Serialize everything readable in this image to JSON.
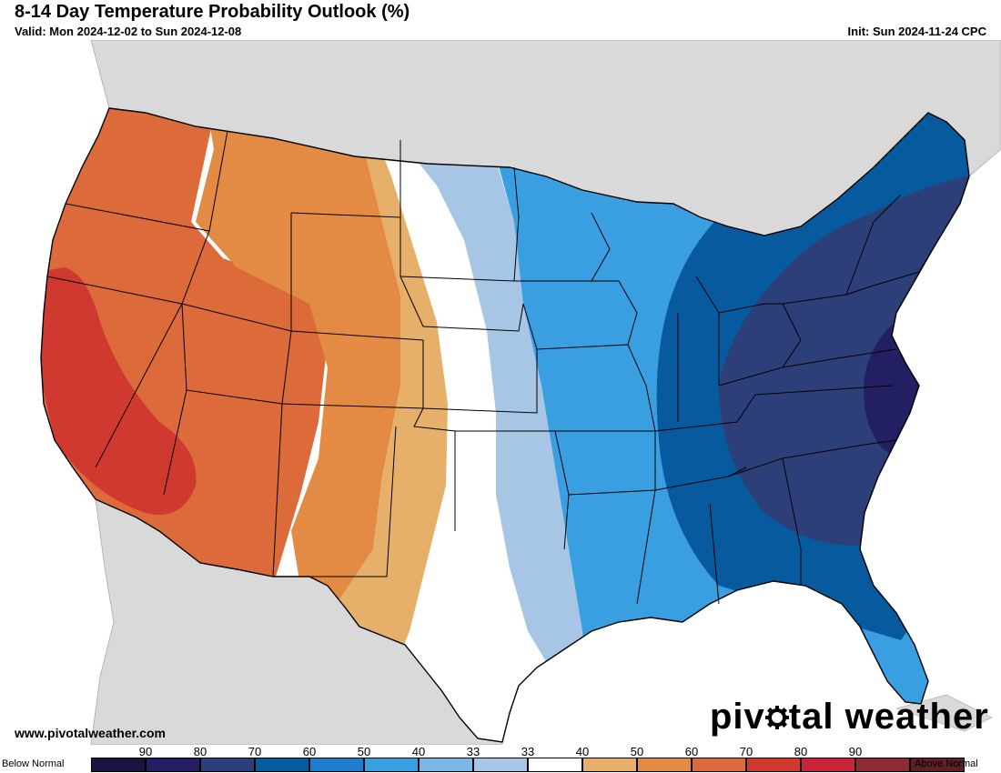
{
  "header": {
    "title": "8-14 Day Temperature Probability Outlook (%)",
    "valid": "Valid: Mon 2024-12-02 to Sun 2024-12-08",
    "init": "Init: Sun 2024-11-24 CPC"
  },
  "footer": {
    "url": "www.pivotalweather.com",
    "brand_left": "piv",
    "brand_right": "tal weather",
    "brand_icon": "gear-icon"
  },
  "legend": {
    "below_label": "Below Normal",
    "above_label": "Above Normal",
    "ticks": [
      "90",
      "80",
      "70",
      "60",
      "50",
      "40",
      "33",
      "33",
      "40",
      "50",
      "60",
      "70",
      "80",
      "90"
    ],
    "colors": [
      "#1a1443",
      "#231f63",
      "#2c3f78",
      "#075a9e",
      "#1e7ecb",
      "#3a9fe0",
      "#7ab6e6",
      "#a7c5e4",
      "#ffffff",
      "#e6b06a",
      "#e38b45",
      "#dc6a3a",
      "#d0392f",
      "#c8243a",
      "#8e2a36",
      "#5e1f26"
    ]
  },
  "map": {
    "land_color": "#d9d9d9",
    "water_color": "#ffffff",
    "neutral_color": "#ffffff",
    "regions": [
      {
        "name": "above-60-west",
        "category": "Above 60",
        "color": "#dc6a3a"
      },
      {
        "name": "above-70-california",
        "category": "Above 70",
        "color": "#d0392f"
      },
      {
        "name": "above-50-rockies",
        "category": "Above 50",
        "color": "#e38b45"
      },
      {
        "name": "above-40-plains",
        "category": "Above 40",
        "color": "#e6b06a"
      },
      {
        "name": "below-40-plains",
        "category": "Below 40",
        "color": "#a7c5e4"
      },
      {
        "name": "below-50-mississippi",
        "category": "Below 50",
        "color": "#3a9fe0"
      },
      {
        "name": "below-60-ohio-valley",
        "category": "Below 60",
        "color": "#075a9e"
      },
      {
        "name": "below-70-east",
        "category": "Below 70",
        "color": "#2c3f78"
      },
      {
        "name": "below-80-virginia",
        "category": "Below 80",
        "color": "#231f63"
      }
    ]
  }
}
